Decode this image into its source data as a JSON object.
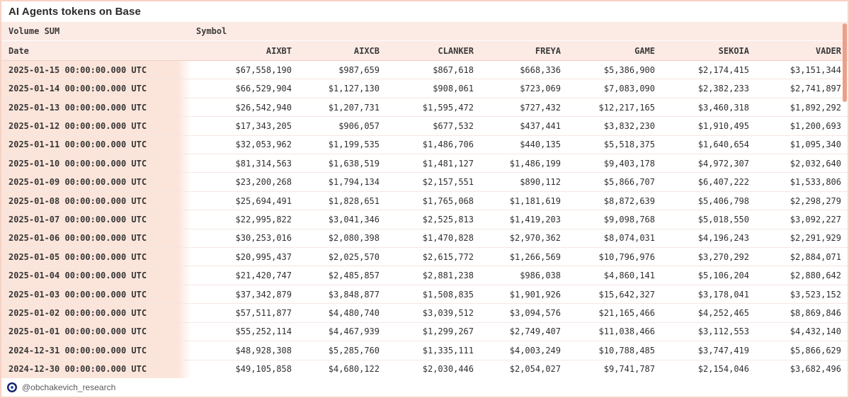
{
  "title": "AI Agents tokens on Base",
  "meta_header": {
    "volume_sum_label": "Volume SUM",
    "symbol_label": "Symbol"
  },
  "footer": {
    "handle": "@obchakevich_research",
    "logo_icon": "dune-logo-icon"
  },
  "colors": {
    "header_bg": "#fcebe5",
    "date_cell_bg": "#fbe5db",
    "row_separator": "#f5e7e2",
    "outer_border": "#f7d2c5",
    "scrollbar_thumb": "#ec9f8a",
    "text": "#2f2f2f"
  },
  "chart_data": {
    "type": "table",
    "title": "AI Agents tokens on Base",
    "columns": [
      "Date",
      "AIXBT",
      "AIXCB",
      "CLANKER",
      "FREYA",
      "GAME",
      "SEKOIA",
      "VADER"
    ],
    "rows": [
      [
        "2025-01-15 00:00:00.000 UTC",
        "$67,558,190",
        "$987,659",
        "$867,618",
        "$668,336",
        "$5,386,900",
        "$2,174,415",
        "$3,151,344"
      ],
      [
        "2025-01-14 00:00:00.000 UTC",
        "$66,529,904",
        "$1,127,130",
        "$908,061",
        "$723,069",
        "$7,083,090",
        "$2,382,233",
        "$2,741,897"
      ],
      [
        "2025-01-13 00:00:00.000 UTC",
        "$26,542,940",
        "$1,207,731",
        "$1,595,472",
        "$727,432",
        "$12,217,165",
        "$3,460,318",
        "$1,892,292"
      ],
      [
        "2025-01-12 00:00:00.000 UTC",
        "$17,343,205",
        "$906,057",
        "$677,532",
        "$437,441",
        "$3,832,230",
        "$1,910,495",
        "$1,200,693"
      ],
      [
        "2025-01-11 00:00:00.000 UTC",
        "$32,053,962",
        "$1,199,535",
        "$1,486,706",
        "$440,135",
        "$5,518,375",
        "$1,640,654",
        "$1,095,340"
      ],
      [
        "2025-01-10 00:00:00.000 UTC",
        "$81,314,563",
        "$1,638,519",
        "$1,481,127",
        "$1,486,199",
        "$9,403,178",
        "$4,972,307",
        "$2,032,640"
      ],
      [
        "2025-01-09 00:00:00.000 UTC",
        "$23,200,268",
        "$1,794,134",
        "$2,157,551",
        "$890,112",
        "$5,866,707",
        "$6,407,222",
        "$1,533,806"
      ],
      [
        "2025-01-08 00:00:00.000 UTC",
        "$25,694,491",
        "$1,828,651",
        "$1,765,068",
        "$1,181,619",
        "$8,872,639",
        "$5,406,798",
        "$2,298,279"
      ],
      [
        "2025-01-07 00:00:00.000 UTC",
        "$22,995,822",
        "$3,041,346",
        "$2,525,813",
        "$1,419,203",
        "$9,098,768",
        "$5,018,550",
        "$3,092,227"
      ],
      [
        "2025-01-06 00:00:00.000 UTC",
        "$30,253,016",
        "$2,080,398",
        "$1,470,828",
        "$2,970,362",
        "$8,074,031",
        "$4,196,243",
        "$2,291,929"
      ],
      [
        "2025-01-05 00:00:00.000 UTC",
        "$20,995,437",
        "$2,025,570",
        "$2,615,772",
        "$1,266,569",
        "$10,796,976",
        "$3,270,292",
        "$2,884,071"
      ],
      [
        "2025-01-04 00:00:00.000 UTC",
        "$21,420,747",
        "$2,485,857",
        "$2,881,238",
        "$986,038",
        "$4,860,141",
        "$5,106,204",
        "$2,880,642"
      ],
      [
        "2025-01-03 00:00:00.000 UTC",
        "$37,342,879",
        "$3,848,877",
        "$1,508,835",
        "$1,901,926",
        "$15,642,327",
        "$3,178,041",
        "$3,523,152"
      ],
      [
        "2025-01-02 00:00:00.000 UTC",
        "$57,511,877",
        "$4,480,740",
        "$3,039,512",
        "$3,094,576",
        "$21,165,466",
        "$4,252,465",
        "$8,869,846"
      ],
      [
        "2025-01-01 00:00:00.000 UTC",
        "$55,252,114",
        "$4,467,939",
        "$1,299,267",
        "$2,749,407",
        "$11,038,466",
        "$3,112,553",
        "$4,432,140"
      ],
      [
        "2024-12-31 00:00:00.000 UTC",
        "$48,928,308",
        "$5,285,760",
        "$1,335,111",
        "$4,003,249",
        "$10,788,485",
        "$3,747,419",
        "$5,866,629"
      ],
      [
        "2024-12-30 00:00:00.000 UTC",
        "$49,105,858",
        "$4,680,122",
        "$2,030,446",
        "$2,054,027",
        "$9,741,787",
        "$2,154,046",
        "$3,682,496"
      ]
    ]
  }
}
